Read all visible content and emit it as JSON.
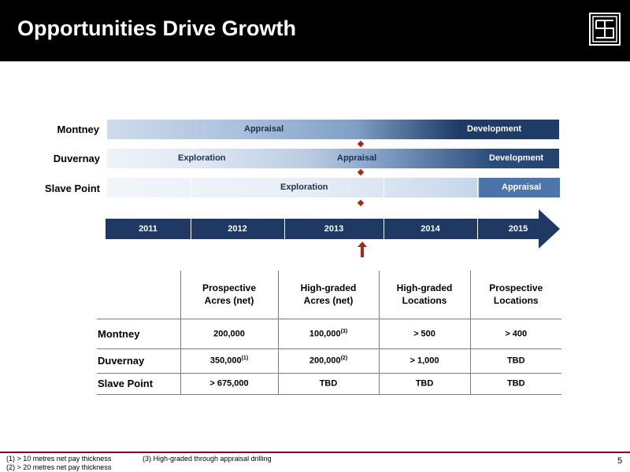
{
  "header": {
    "title": "Opportunities Drive Growth"
  },
  "gantt": {
    "rows": [
      {
        "label": "Montney",
        "phases": [
          "Appraisal",
          "Development"
        ]
      },
      {
        "label": "Duvernay",
        "phases": [
          "Exploration",
          "Appraisal",
          "Development"
        ]
      },
      {
        "label": "Slave Point",
        "phases": [
          "Exploration",
          "Appraisal"
        ]
      }
    ],
    "years": [
      "2011",
      "2012",
      "2013",
      "2014",
      "2015"
    ]
  },
  "table": {
    "headers": [
      [
        "Prospective",
        "Acres (net)"
      ],
      [
        "High-graded",
        "Acres (net)"
      ],
      [
        "High-graded",
        "Locations"
      ],
      [
        "Prospective",
        "Locations"
      ]
    ],
    "rows": [
      {
        "name": "Montney",
        "cells": [
          {
            "v": "200,000",
            "sup": ""
          },
          {
            "v": "100,000",
            "sup": "(3)"
          },
          {
            "v": "> 500",
            "sup": ""
          },
          {
            "v": "> 400",
            "sup": ""
          }
        ]
      },
      {
        "name": "Duvernay",
        "cells": [
          {
            "v": "350,000",
            "sup": "(1)"
          },
          {
            "v": "200,000",
            "sup": "(2)"
          },
          {
            "v": "> 1,000",
            "sup": ""
          },
          {
            "v": "TBD",
            "sup": ""
          }
        ]
      },
      {
        "name": "Slave Point",
        "cells": [
          {
            "v": "> 675,000",
            "sup": ""
          },
          {
            "v": "TBD",
            "sup": ""
          },
          {
            "v": "TBD",
            "sup": ""
          },
          {
            "v": "TBD",
            "sup": ""
          }
        ]
      }
    ]
  },
  "footnotes": {
    "n1": "(1) > 10 metres net pay thickness",
    "n2": "(2) > 20 metres net pay thickness",
    "n3": "(3) High-graded through appraisal drilling"
  },
  "page_number": "5",
  "colors": {
    "accent": "#a0001a",
    "navy": "#1f3864",
    "marker": "#a52a16"
  }
}
